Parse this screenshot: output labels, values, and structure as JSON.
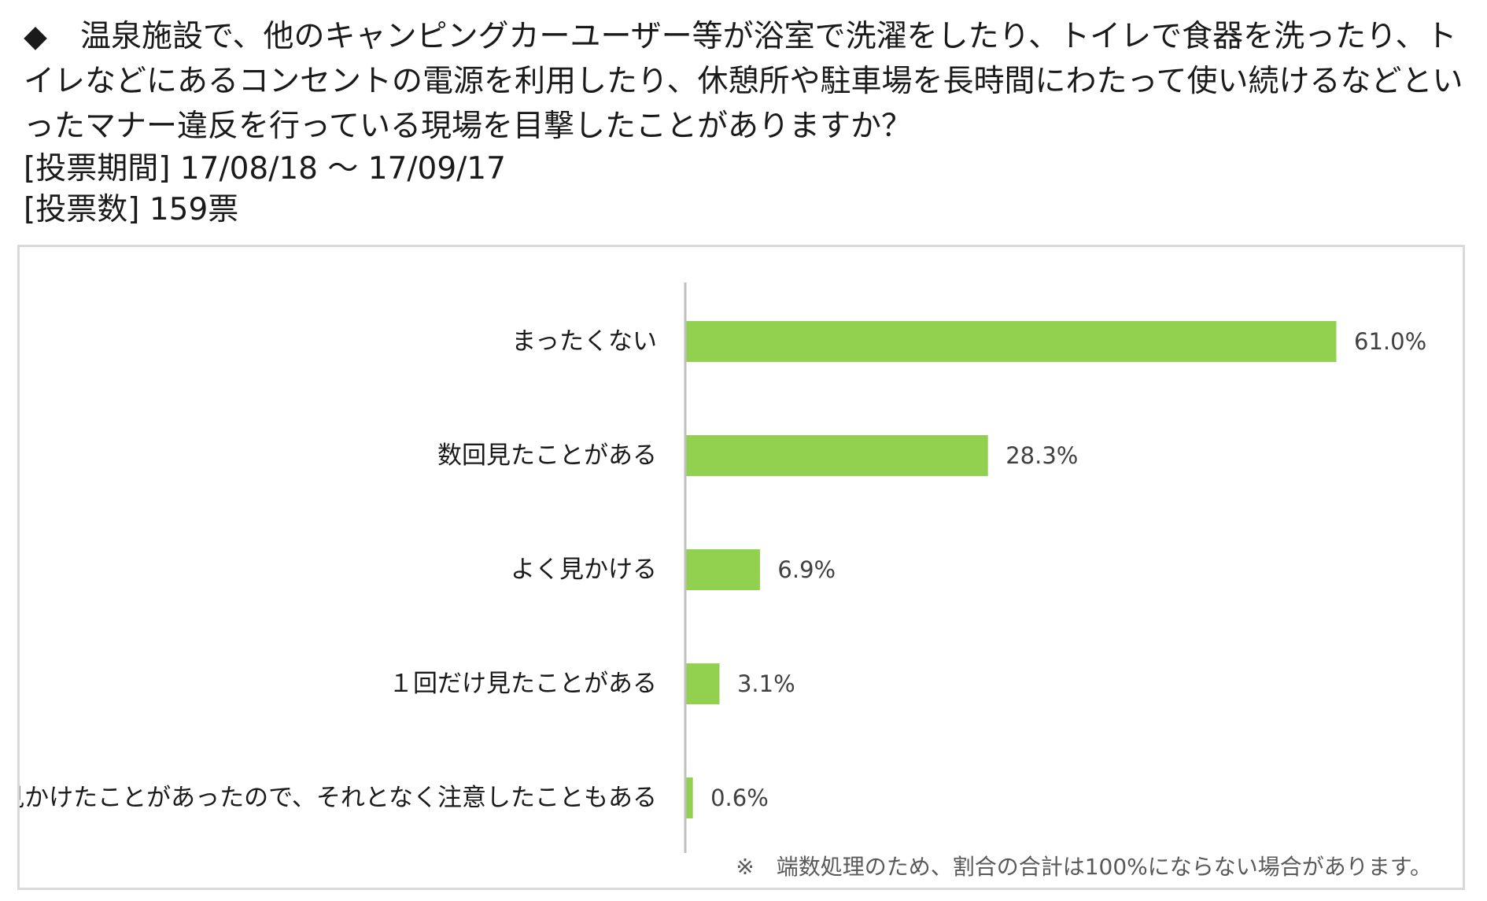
{
  "header": {
    "bullet": "◆",
    "question": "温泉施設で、他のキャンピングカーユーザー等が浴室で洗濯をしたり、トイレで食器を洗ったり、トイレなどにあるコンセントの電源を利用したり、休憩所や駐車場を長時間にわたって使い続けるなどといったマナー違反を行っている現場を目撃したことがありますか？",
    "period": "[投票期間] 17/08/18 ～ 17/09/17",
    "votes": "[投票数] 159票"
  },
  "note": "※　端数処理のため、割合の合計は100%にならない場合があります。",
  "chart_data": {
    "type": "bar",
    "orientation": "horizontal",
    "categories": [
      "まったくない",
      "数回見たことがある",
      "よく見かける",
      "１回だけ見たことがある",
      "見かけたことがあったので、それとなく注意したこともある"
    ],
    "values": [
      61.0,
      28.3,
      6.9,
      3.1,
      0.6
    ],
    "value_labels": [
      "61.0%",
      "28.3%",
      "6.9%",
      "3.1%",
      "0.6%"
    ],
    "unit": "%",
    "xlim": [
      0,
      61.0
    ],
    "bar_color": "#92d050",
    "axis_color": "#bfbfbf",
    "grid": false,
    "legend": "none"
  }
}
